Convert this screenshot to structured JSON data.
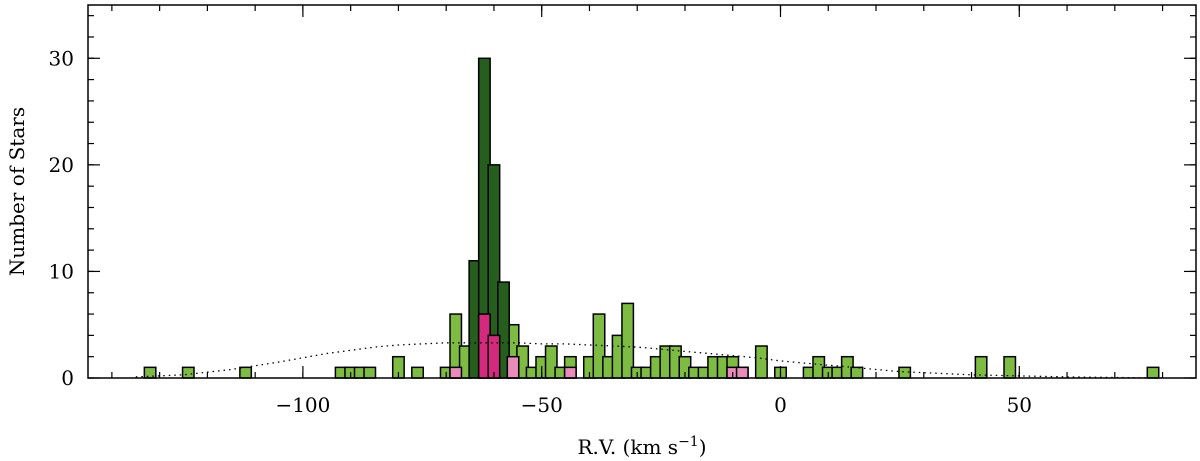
{
  "chart_data": {
    "type": "bar",
    "title": "",
    "xlabel": "R.V. (km s",
    "xlabel_sup": "−1",
    "xlabel_end": ")",
    "ylabel": "Number of Stars",
    "xlim": [
      -145,
      87
    ],
    "ylim": [
      0,
      35
    ],
    "bin_width": 2.4,
    "x_ticks": [
      {
        "value": -100,
        "label": "−100"
      },
      {
        "value": -50,
        "label": "−50"
      },
      {
        "value": 0,
        "label": "0"
      },
      {
        "value": 50,
        "label": "50"
      }
    ],
    "y_ticks": [
      {
        "value": 0,
        "label": "0"
      },
      {
        "value": 10,
        "label": "10"
      },
      {
        "value": 20,
        "label": "20"
      },
      {
        "value": 30,
        "label": "30"
      }
    ],
    "x_minor_step": 10,
    "y_minor_step": 2,
    "grid": false,
    "series": [
      {
        "color": "#7dbb42",
        "stroke": "#000000",
        "bins": [
          [
            -132,
            1
          ],
          [
            -124,
            1
          ],
          [
            -112,
            1
          ],
          [
            -80,
            2
          ],
          [
            -76,
            1
          ],
          [
            -70,
            1
          ],
          [
            -68,
            6
          ],
          [
            -66,
            3
          ],
          [
            -56,
            5
          ],
          [
            -54,
            3
          ],
          [
            -52,
            1
          ],
          [
            -50,
            2
          ],
          [
            -48,
            3
          ],
          [
            -46,
            1
          ],
          [
            -44,
            2
          ],
          [
            -40,
            2
          ],
          [
            -38,
            6
          ],
          [
            -36,
            2
          ],
          [
            -34,
            4
          ],
          [
            -32,
            7
          ],
          [
            -30,
            1
          ],
          [
            -28,
            1
          ],
          [
            -26,
            2
          ],
          [
            -24,
            3
          ],
          [
            -22,
            3
          ],
          [
            -20,
            2
          ],
          [
            -18,
            1
          ],
          [
            -16,
            1
          ],
          [
            -14,
            2
          ],
          [
            -12,
            2
          ],
          [
            -10,
            2
          ],
          [
            -8,
            1
          ],
          [
            -4,
            3
          ],
          [
            0,
            1
          ],
          [
            6,
            1
          ],
          [
            8,
            2
          ],
          [
            10,
            1
          ],
          [
            12,
            1
          ],
          [
            14,
            2
          ],
          [
            16,
            1
          ],
          [
            26,
            1
          ],
          [
            42,
            2
          ],
          [
            48,
            2
          ],
          [
            78,
            1
          ],
          [
            -92,
            1
          ],
          [
            -90,
            1
          ],
          [
            -88,
            1
          ],
          [
            -86,
            1
          ]
        ]
      },
      {
        "color": "#255e1d",
        "stroke": "#000000",
        "bins": [
          [
            -64,
            11
          ],
          [
            -62,
            30
          ],
          [
            -60,
            20
          ],
          [
            -58,
            9
          ]
        ]
      },
      {
        "color": "#d42a7e",
        "stroke": "#000000",
        "bins": [
          [
            -62,
            6
          ],
          [
            -60,
            4
          ]
        ]
      },
      {
        "color": "#e88bb8",
        "stroke": "#000000",
        "bins": [
          [
            -68,
            1
          ],
          [
            -56,
            2
          ],
          [
            -44,
            1
          ],
          [
            -10,
            1
          ],
          [
            -8,
            1
          ]
        ]
      }
    ],
    "model_curve": {
      "style": "dotted",
      "x": [
        -135,
        -125,
        -115,
        -105,
        -100,
        -95,
        -90,
        -85,
        -80,
        -75,
        -70,
        -65,
        -60,
        -55,
        -50,
        -45,
        -40,
        -35,
        -30,
        -25,
        -20,
        -15,
        -10,
        -5,
        0,
        5,
        10,
        15,
        20,
        25,
        30,
        40,
        50,
        60,
        70,
        80
      ],
      "y": [
        0.1,
        0.3,
        0.8,
        1.5,
        1.9,
        2.3,
        2.6,
        2.9,
        3.1,
        3.2,
        3.3,
        3.3,
        3.3,
        3.3,
        3.2,
        3.2,
        3.1,
        3.0,
        2.9,
        2.7,
        2.5,
        2.3,
        2.1,
        1.9,
        1.6,
        1.4,
        1.2,
        1.0,
        0.8,
        0.6,
        0.5,
        0.3,
        0.2,
        0.1,
        0.05,
        0.0
      ]
    }
  }
}
